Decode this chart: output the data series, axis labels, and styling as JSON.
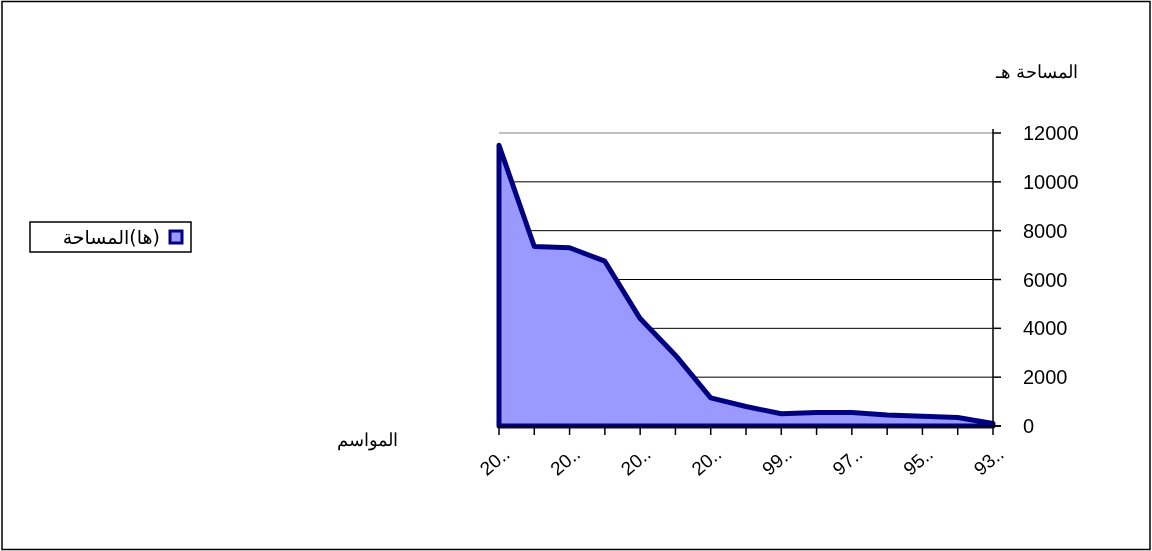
{
  "chart_data": {
    "type": "area",
    "ylabel": "المساحة هـ",
    "xlabel": "المواسم",
    "categories": [
      "20..",
      null,
      "20..",
      null,
      "20..",
      null,
      "20..",
      null,
      "99..",
      null,
      "97..",
      null,
      "95..",
      null,
      "93.."
    ],
    "series": [
      {
        "name": "(ها)المساحة",
        "color": "#9999ff",
        "values": [
          11500,
          7350,
          7300,
          6750,
          4400,
          2900,
          1150,
          800,
          500,
          550,
          550,
          450,
          400,
          350,
          100
        ]
      }
    ],
    "ylim": [
      0,
      12000
    ],
    "yticks": [
      0,
      2000,
      4000,
      6000,
      8000,
      10000,
      12000
    ],
    "grid": "y",
    "legend": "left"
  }
}
